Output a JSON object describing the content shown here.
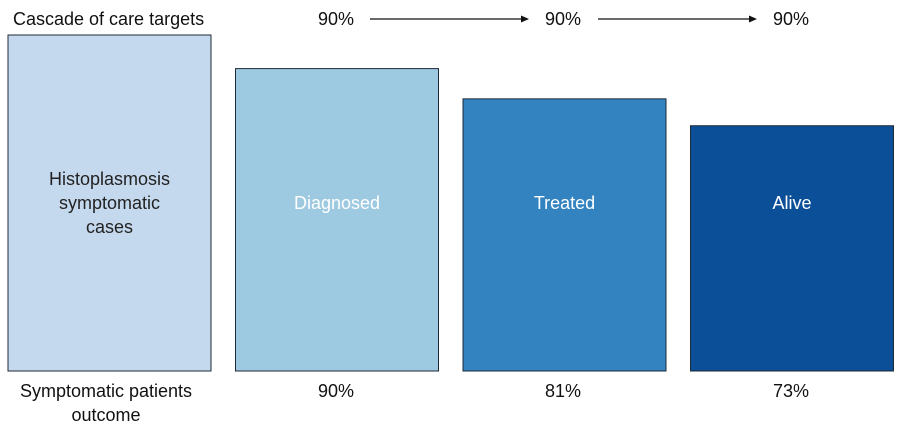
{
  "chart_data": {
    "type": "bar",
    "title": "",
    "categories": [
      "Histoplasmosis symptomatic cases",
      "Diagnosed",
      "Treated",
      "Alive"
    ],
    "category_label_lines": [
      [
        "Histoplasmosis",
        "symptomatic",
        "cases"
      ],
      [
        "Diagnosed"
      ],
      [
        "Treated"
      ],
      [
        "Alive"
      ]
    ],
    "values": [
      100,
      90,
      81,
      73
    ],
    "ylim": [
      0,
      100
    ],
    "grid": false,
    "colors": [
      "#c5d9ee",
      "#9ecae1",
      "#3283c0",
      "#0b4f98"
    ],
    "label_colors": [
      "#222222",
      "#ffffff",
      "#ffffff",
      "#ffffff"
    ],
    "top_row": {
      "label": "Cascade of care targets",
      "targets": [
        "90%",
        "90%",
        "90%"
      ]
    },
    "bottom_row": {
      "label_lines": [
        "Symptomatic patients",
        "outcome"
      ],
      "outcomes": [
        "90%",
        "81%",
        "73%"
      ]
    }
  }
}
